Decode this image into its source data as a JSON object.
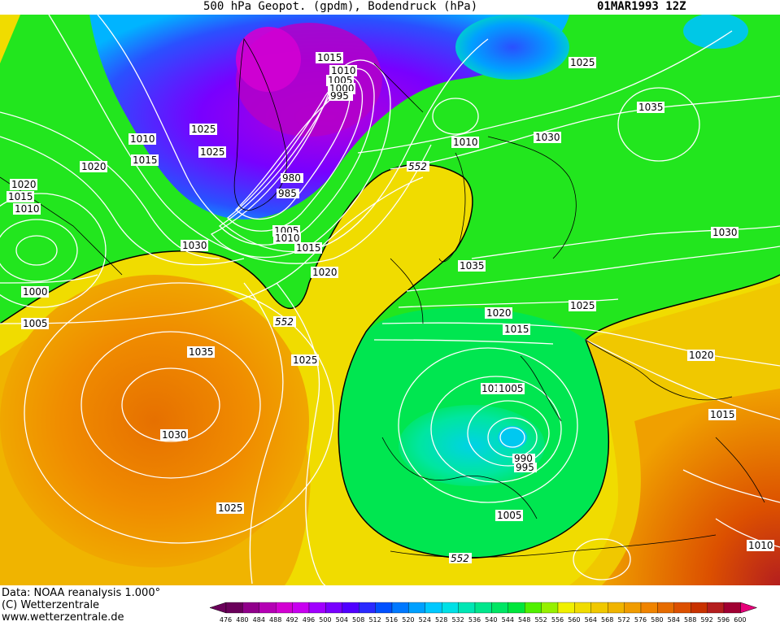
{
  "header": {
    "title": "500 hPa Geopot. (gpdm), Bodendruck (hPa)",
    "date": "01MAR1993 12Z"
  },
  "footer": {
    "data_line": "Data: NOAA reanalysis 1.000°",
    "copyright": "(C) Wetterzentrale",
    "url": "www.wetterzentrale.de"
  },
  "legend": {
    "values": [
      "476",
      "480",
      "484",
      "488",
      "492",
      "496",
      "500",
      "504",
      "508",
      "512",
      "516",
      "520",
      "524",
      "528",
      "532",
      "536",
      "540",
      "544",
      "548",
      "552",
      "556",
      "560",
      "564",
      "568",
      "572",
      "576",
      "580",
      "584",
      "588",
      "592",
      "596",
      "600"
    ],
    "colors": [
      "#6a005a",
      "#90008a",
      "#b400b4",
      "#d200d2",
      "#c800f0",
      "#a000ff",
      "#7800ff",
      "#5000ff",
      "#2a2aff",
      "#0050ff",
      "#0078ff",
      "#00a0ff",
      "#00c8ff",
      "#00e0e6",
      "#00e6b4",
      "#00e68c",
      "#00e664",
      "#00e63c",
      "#50f000",
      "#96f000",
      "#f0f000",
      "#f0dc00",
      "#f0c800",
      "#f0b400",
      "#f09c00",
      "#f08400",
      "#e66c00",
      "#dc5000",
      "#c83200",
      "#b41e1e",
      "#a00032",
      "#e6007a"
    ]
  },
  "isobar_labels": [
    "1015",
    "1010",
    "1005",
    "1000",
    "995",
    "1025",
    "1035",
    "1010",
    "1030",
    "1025",
    "1010",
    "1015",
    "1020",
    "1015",
    "1010",
    "1020",
    "980",
    "985",
    "1005",
    "1010",
    "1015",
    "1030",
    "1020",
    "1000",
    "1005",
    "1035",
    "1025",
    "1030",
    "1025",
    "1035",
    "1020",
    "1025",
    "1015",
    "1020",
    "1010",
    "1005",
    "990",
    "995",
    "1005",
    "1030",
    "1015",
    "1010",
    "552",
    "552",
    "552"
  ],
  "map_colors": {
    "green": "#00e63c",
    "bright_green": "#22e61e",
    "yellow": "#f0dc00",
    "orange": "#f0a000",
    "dark_orange": "#e67800",
    "blue": "#2a50ff",
    "purple": "#b400dc",
    "cyan": "#00d2e6",
    "red": "#c83200"
  }
}
